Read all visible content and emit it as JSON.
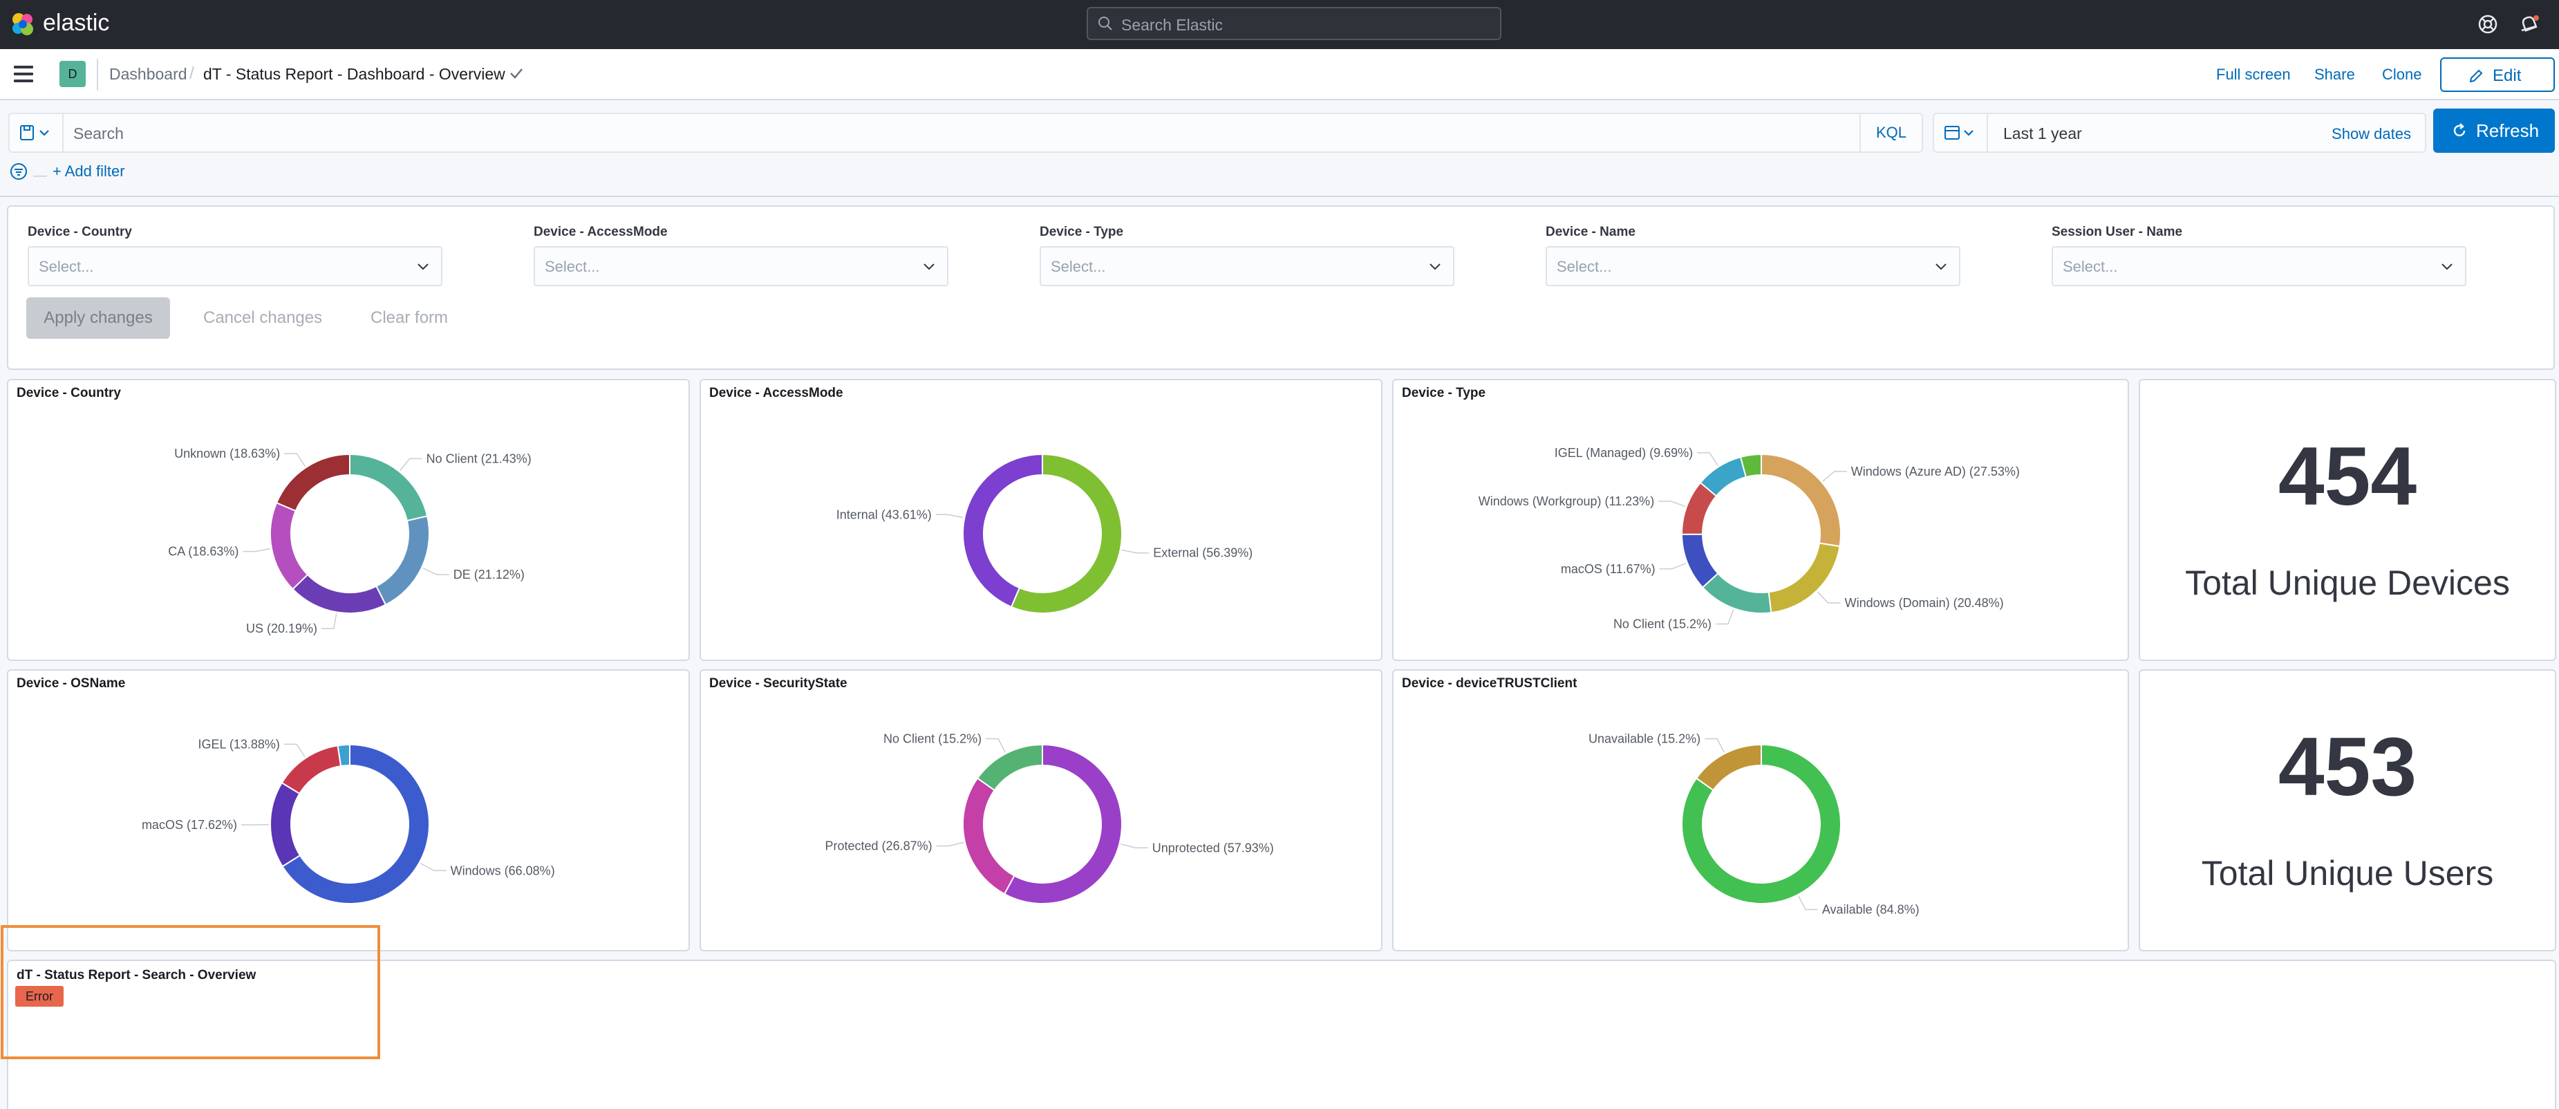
{
  "header": {
    "brand": "elastic",
    "search_placeholder": "Search Elastic"
  },
  "breadcrumbs": {
    "space_badge": "D",
    "items": [
      "Dashboard",
      "dT - Status Report - Dashboard - Overview"
    ],
    "separator": "/"
  },
  "actions": {
    "full_screen": "Full screen",
    "share": "Share",
    "clone": "Clone",
    "edit": "Edit"
  },
  "query": {
    "placeholder": "Search",
    "language": "KQL",
    "time_range": "Last 1 year",
    "show_dates": "Show dates",
    "refresh": "Refresh",
    "filter_dash": "—",
    "add_filter": "+ Add filter"
  },
  "controls": {
    "fields": [
      {
        "label": "Device - Country",
        "placeholder": "Select..."
      },
      {
        "label": "Device - AccessMode",
        "placeholder": "Select..."
      },
      {
        "label": "Device - Type",
        "placeholder": "Select..."
      },
      {
        "label": "Device - Name",
        "placeholder": "Select..."
      },
      {
        "label": "Session User - Name",
        "placeholder": "Select..."
      }
    ],
    "apply": "Apply changes",
    "cancel": "Cancel changes",
    "clear": "Clear form"
  },
  "chart_data": [
    {
      "id": "country",
      "type": "pie",
      "title": "Device - Country",
      "slices": [
        {
          "label": "No Client",
          "value": 21.43,
          "color": "#54b399"
        },
        {
          "label": "DE",
          "value": 21.12,
          "color": "#6092c0"
        },
        {
          "label": "US",
          "value": 20.19,
          "color": "#6a3db5"
        },
        {
          "label": "CA",
          "value": 18.63,
          "color": "#b54fc0"
        },
        {
          "label": "Unknown",
          "value": 18.63,
          "color": "#9b2f34"
        }
      ]
    },
    {
      "id": "accessmode",
      "type": "pie",
      "title": "Device - AccessMode",
      "slices": [
        {
          "label": "External",
          "value": 56.39,
          "color": "#7fbf32"
        },
        {
          "label": "Internal",
          "value": 43.61,
          "color": "#7c3fd0"
        }
      ]
    },
    {
      "id": "type",
      "type": "pie",
      "title": "Device - Type",
      "slices": [
        {
          "label": "Windows (Azure AD)",
          "value": 27.53,
          "color": "#d6a35c"
        },
        {
          "label": "Windows (Domain)",
          "value": 20.48,
          "color": "#c4b338"
        },
        {
          "label": "No Client",
          "value": 15.2,
          "color": "#54b399"
        },
        {
          "label": "macOS",
          "value": 11.67,
          "color": "#3e4fc0"
        },
        {
          "label": "Windows (Workgroup)",
          "value": 11.23,
          "color": "#c74b4b"
        },
        {
          "label": "IGEL (Managed)",
          "value": 9.69,
          "color": "#3aa5c8"
        },
        {
          "label": "",
          "value": 4.2,
          "color": "#5fba3c"
        }
      ]
    },
    {
      "id": "osname",
      "type": "pie",
      "title": "Device - OSName",
      "slices": [
        {
          "label": "Windows",
          "value": 66.08,
          "color": "#3c5ccd"
        },
        {
          "label": "macOS",
          "value": 17.62,
          "color": "#5a35b5"
        },
        {
          "label": "IGEL",
          "value": 13.88,
          "color": "#c8394c"
        },
        {
          "label": "",
          "value": 2.42,
          "color": "#3da0d0"
        }
      ]
    },
    {
      "id": "securitystate",
      "type": "pie",
      "title": "Device - SecurityState",
      "slices": [
        {
          "label": "Unprotected",
          "value": 57.93,
          "color": "#9a3fc8"
        },
        {
          "label": "Protected",
          "value": 26.87,
          "color": "#c43fa8"
        },
        {
          "label": "No Client",
          "value": 15.2,
          "color": "#54b373"
        }
      ]
    },
    {
      "id": "client",
      "type": "pie",
      "title": "Device - deviceTRUSTClient",
      "slices": [
        {
          "label": "Available",
          "value": 84.8,
          "color": "#43c052"
        },
        {
          "label": "Unavailable",
          "value": 15.2,
          "color": "#c09538"
        }
      ]
    }
  ],
  "metrics": [
    {
      "value": "454",
      "label": "Total Unique Devices"
    },
    {
      "value": "453",
      "label": "Total Unique Users"
    }
  ],
  "search_panel": {
    "title": "dT - Status Report - Search - Overview",
    "error_badge": "Error"
  },
  "colors": {
    "header_bg": "#25282f",
    "link": "#006bb8",
    "primary": "#0077cc",
    "error": "#e7664c",
    "highlight": "#f08d3c"
  }
}
